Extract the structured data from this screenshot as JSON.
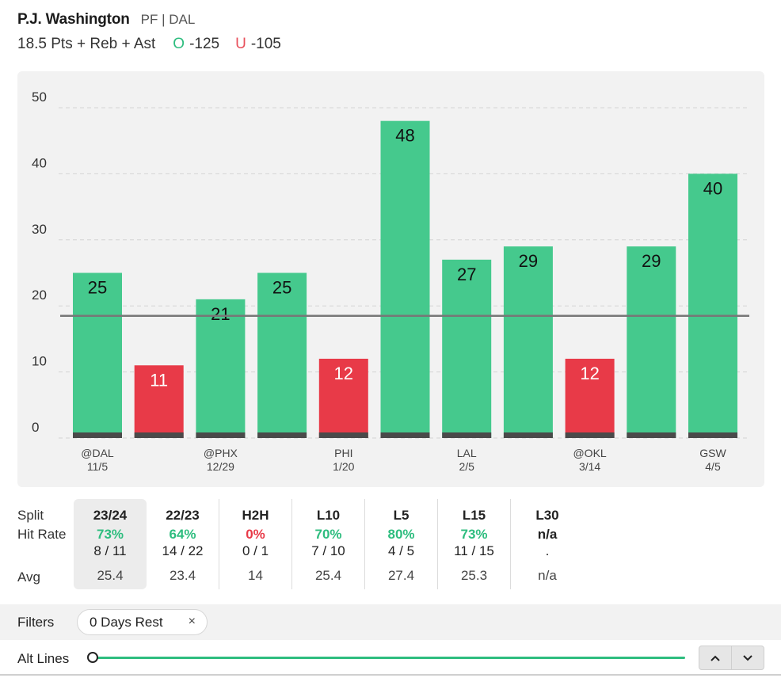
{
  "player": {
    "name": "P.J. Washington",
    "position_team": "PF | DAL"
  },
  "prop": {
    "line": "18.5 Pts + Reb + Ast",
    "over_symbol": "O",
    "over_odds": "-125",
    "under_symbol": "U",
    "under_odds": "-105"
  },
  "chart_data": {
    "type": "bar",
    "y_ticks": [
      "0",
      "10",
      "20",
      "30",
      "40",
      "50"
    ],
    "ylim": [
      0,
      50
    ],
    "threshold": 18.5,
    "values": [
      25,
      11,
      21,
      25,
      12,
      48,
      27,
      29,
      12,
      29,
      40
    ],
    "x_labels": [
      {
        "index": 0,
        "opponent": "@DAL",
        "date": "11/5"
      },
      {
        "index": 2,
        "opponent": "@PHX",
        "date": "12/29"
      },
      {
        "index": 4,
        "opponent": "PHI",
        "date": "1/20"
      },
      {
        "index": 6,
        "opponent": "LAL",
        "date": "2/5"
      },
      {
        "index": 8,
        "opponent": "@OKL",
        "date": "3/14"
      },
      {
        "index": 10,
        "opponent": "GSW",
        "date": "4/5"
      }
    ],
    "colors": {
      "over": "#45c98d",
      "under": "#e83a48",
      "base": "#4a4a4a",
      "line": "#777777"
    }
  },
  "splits": {
    "row_labels": {
      "split": "Split",
      "hit_rate": "Hit Rate",
      "avg": "Avg"
    },
    "columns": [
      {
        "label": "23/24",
        "rate": "73%",
        "status": "good",
        "count": "8 / 11",
        "avg": "25.4",
        "selected": true
      },
      {
        "label": "22/23",
        "rate": "64%",
        "status": "good",
        "count": "14 / 22",
        "avg": "23.4"
      },
      {
        "label": "H2H",
        "rate": "0%",
        "status": "bad",
        "count": "0 / 1",
        "avg": "14"
      },
      {
        "label": "L10",
        "rate": "70%",
        "status": "good",
        "count": "7 / 10",
        "avg": "25.4"
      },
      {
        "label": "L5",
        "rate": "80%",
        "status": "good",
        "count": "4 / 5",
        "avg": "27.4"
      },
      {
        "label": "L15",
        "rate": "73%",
        "status": "good",
        "count": "11 / 15",
        "avg": "25.3"
      },
      {
        "label": "L30",
        "rate": "n/a",
        "status": "none",
        "count": ".",
        "avg": "n/a"
      }
    ]
  },
  "filters": {
    "label": "Filters",
    "chip": "0 Days Rest",
    "chip_close": "×"
  },
  "alt_lines": {
    "label": "Alt Lines",
    "up_arrow": "^",
    "down_arrow": "⌄"
  }
}
